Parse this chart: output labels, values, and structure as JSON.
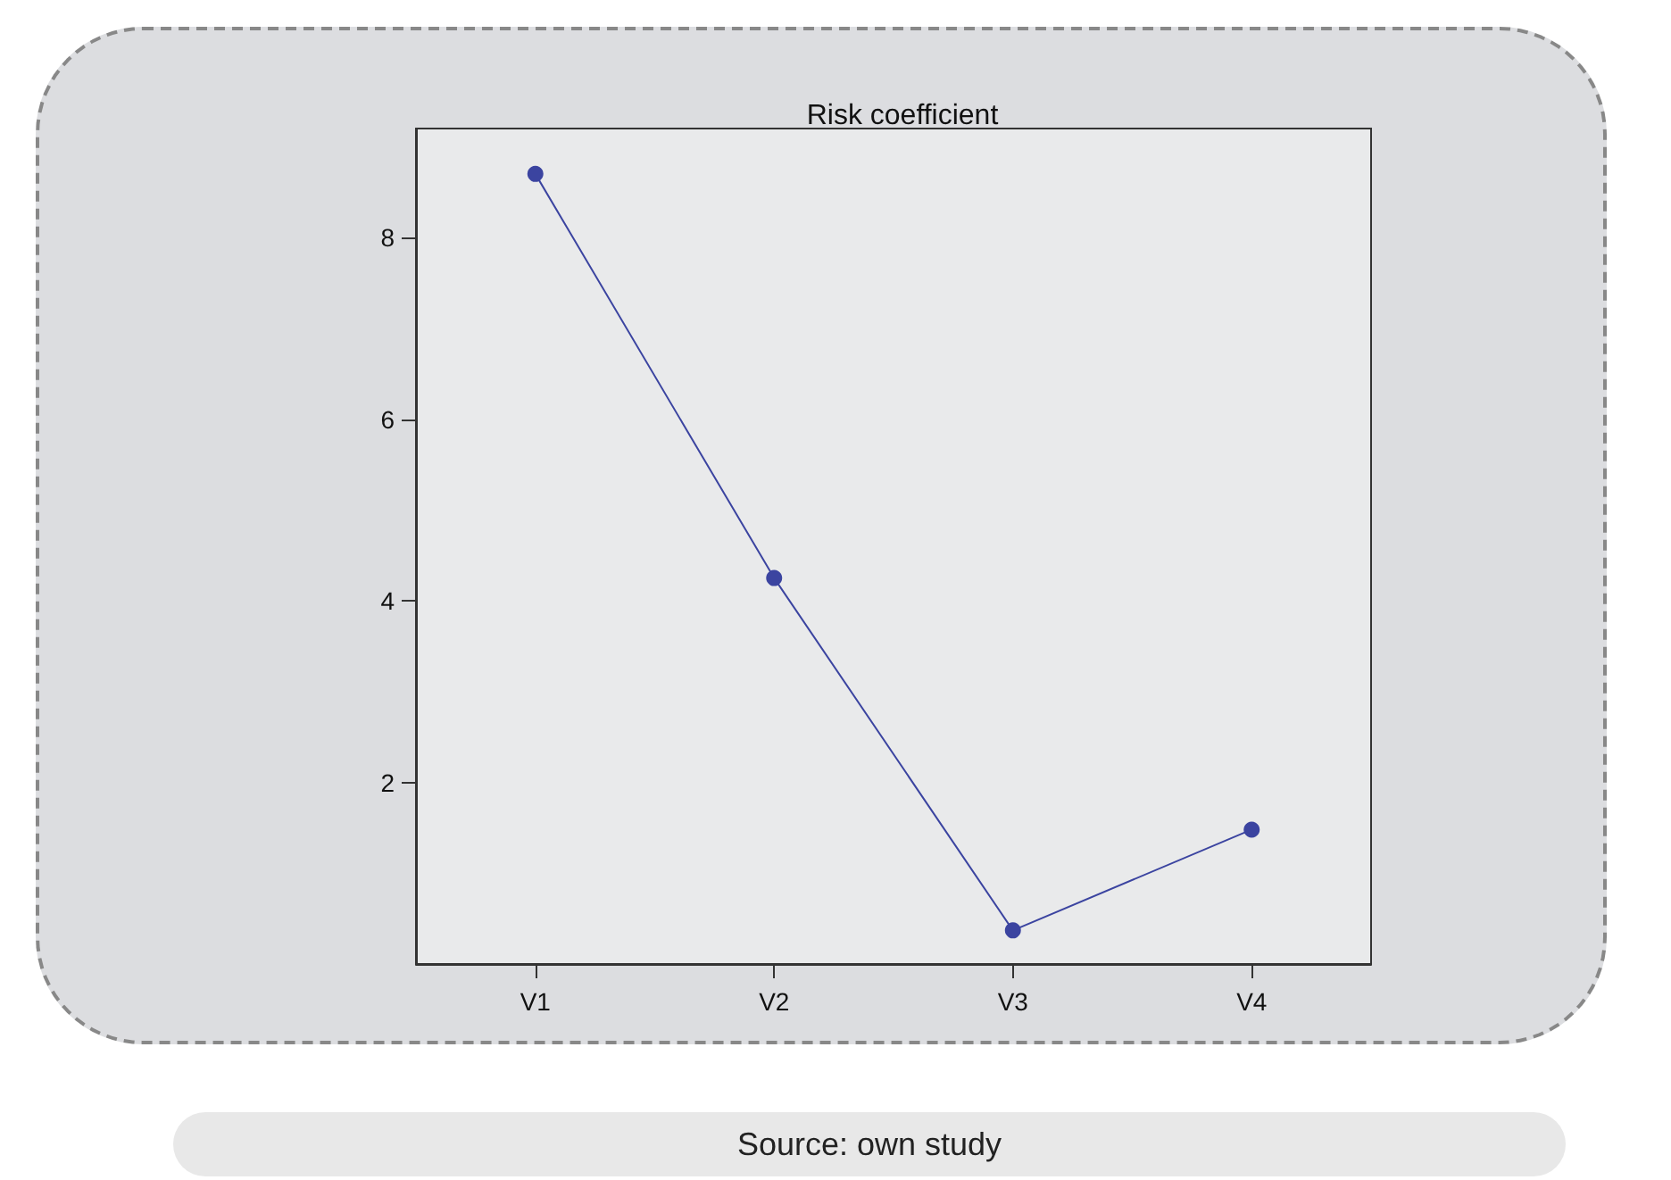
{
  "chart_data": {
    "type": "line",
    "title": "Risk coefficient",
    "categories": [
      "V1",
      "V2",
      "V3",
      "V4"
    ],
    "series": [
      {
        "color": "#3b44a0",
        "values": [
          8.7,
          4.25,
          0.37,
          1.48
        ]
      }
    ],
    "ylim": [
      0,
      9.2
    ],
    "yticks": [
      2,
      4,
      6,
      8
    ],
    "grid": false,
    "marker": "circle",
    "line_style": "solid",
    "annotations": [
      "Source: own study"
    ]
  }
}
